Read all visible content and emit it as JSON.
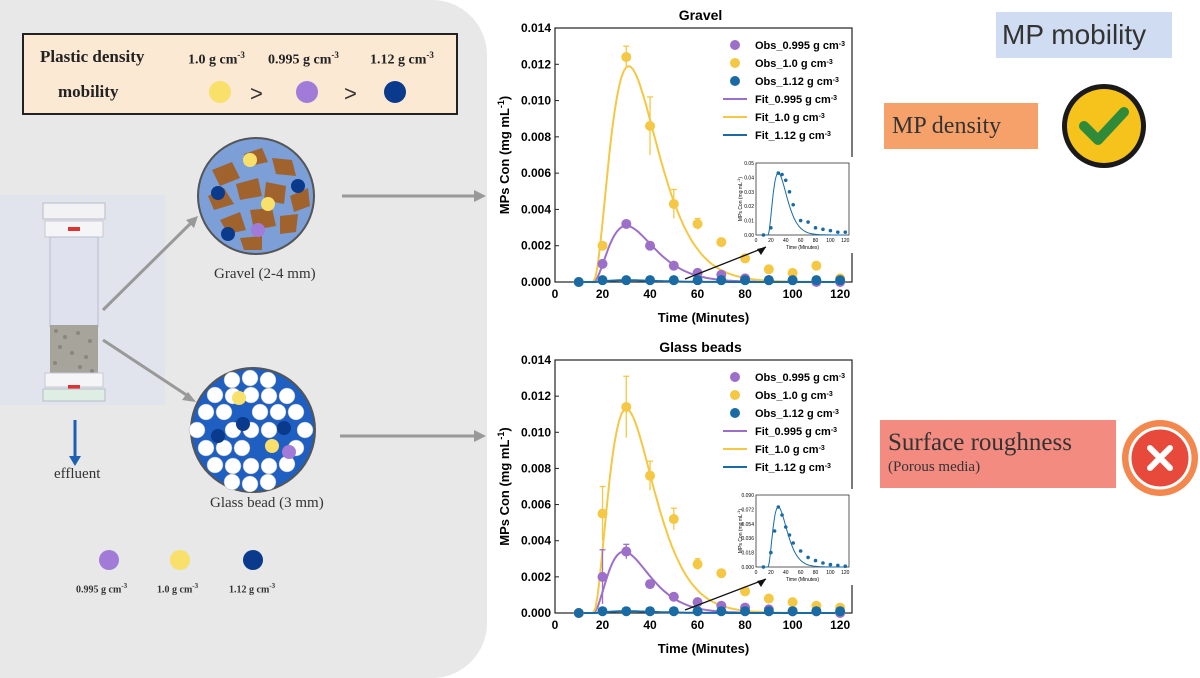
{
  "legend_box": {
    "title": "Plastic density",
    "mobility": "mobility",
    "densities": [
      "1.0 g cm",
      "0.995 g cm",
      "1.12 g cm"
    ],
    "unit_exp": "-3",
    "gt": ">"
  },
  "schematic": {
    "gravel_label": "Gravel (2-4 mm)",
    "glass_label": "Glass bead (3 mm)",
    "effluent": "effluent",
    "bottom_legend": [
      "0.995 g cm",
      "1.0 g cm",
      "1.12 g cm"
    ]
  },
  "tags": {
    "mp_mobility": "MP mobility",
    "mp_density": "MP density",
    "surface": "Surface roughness",
    "porous": "(Porous media)"
  },
  "colors": {
    "purple": "#9c6fc9",
    "yellow": "#f4c845",
    "blue": "#1a6aa4",
    "navy": "#0a3a8c",
    "dot_purple": "#a27ad8",
    "dot_yellow": "#f8e06a"
  },
  "chart_data": [
    {
      "type": "line",
      "title": "Gravel",
      "xlabel": "Time (Minutes)",
      "ylabel": "MPs Con (mg mL",
      "ylabel_exp": "-1",
      "ylabel_close": ")",
      "xlim": [
        0,
        125
      ],
      "ylim": [
        0,
        0.014
      ],
      "xticks": [
        "0",
        "20",
        "40",
        "60",
        "80",
        "100",
        "120"
      ],
      "yticks": [
        "0.000",
        "0.002",
        "0.004",
        "0.006",
        "0.008",
        "0.010",
        "0.012",
        "0.014"
      ],
      "legend": [
        "Obs_0.995 g cm",
        "Obs_1.0 g cm",
        "Obs_1.12 g cm",
        "Fit_0.995 g cm",
        "Fit_1.0 g cm",
        "Fit_1.12 g cm"
      ],
      "legend_exp": "-3",
      "series": [
        {
          "name": "Obs_0.995",
          "x": [
            10,
            20,
            30,
            40,
            50,
            60,
            70,
            80,
            90,
            100,
            110,
            120
          ],
          "values": [
            0.0,
            0.001,
            0.0032,
            0.002,
            0.0009,
            0.0005,
            0.0004,
            0.0002,
            0.0001,
            0.0001,
            0.0,
            0.0
          ]
        },
        {
          "name": "Obs_1.0",
          "x": [
            10,
            20,
            30,
            40,
            50,
            60,
            70,
            80,
            90,
            100,
            110,
            120
          ],
          "values": [
            0.0,
            0.002,
            0.0124,
            0.0086,
            0.0043,
            0.0032,
            0.0022,
            0.0013,
            0.0007,
            0.0005,
            0.0009,
            0.0002
          ],
          "err": [
            0,
            0,
            0.0006,
            0.0016,
            0.0008,
            0.0003,
            0.0002,
            0.0002,
            0,
            0,
            0,
            0
          ]
        },
        {
          "name": "Obs_1.12",
          "x": [
            10,
            20,
            30,
            40,
            50,
            60,
            70,
            80,
            90,
            100,
            110,
            120
          ],
          "values": [
            0,
            0.0001,
            0.0001,
            0.0001,
            0.0001,
            0.0001,
            0.0001,
            0.0001,
            0.0001,
            0.0001,
            0.0001,
            0.0001
          ]
        },
        {
          "name": "Fit_0.995",
          "peak": 0.0031,
          "tpeak": 30
        },
        {
          "name": "Fit_1.0",
          "peak": 0.0119,
          "tpeak": 31
        },
        {
          "name": "Fit_1.12",
          "peak": 0.0001,
          "tpeak": 30
        }
      ],
      "inset": {
        "ylabel": "MPs Con (mg mL",
        "xlabel": "Time (Minutes)",
        "yticks": [
          "0.00",
          "0.01",
          "0.02",
          "0.03",
          "0.04",
          "0.05"
        ],
        "xticks": [
          "0",
          "20",
          "40",
          "60",
          "80",
          "100",
          "120"
        ],
        "ylim": [
          0,
          0.05
        ],
        "x": [
          10,
          20,
          30,
          35,
          40,
          45,
          50,
          60,
          70,
          80,
          90,
          100,
          110,
          120
        ],
        "values": [
          0,
          0.005,
          0.043,
          0.042,
          0.038,
          0.03,
          0.021,
          0.01,
          0.009,
          0.005,
          0.004,
          0.003,
          0.002,
          0.002
        ]
      }
    },
    {
      "type": "line",
      "title": "Glass beads",
      "xlabel": "Time (Minutes)",
      "ylabel": "MPs Con (mg mL",
      "ylabel_exp": "-1",
      "ylabel_close": ")",
      "xlim": [
        0,
        125
      ],
      "ylim": [
        0,
        0.014
      ],
      "xticks": [
        "0",
        "20",
        "40",
        "60",
        "80",
        "100",
        "120"
      ],
      "yticks": [
        "0.000",
        "0.002",
        "0.004",
        "0.006",
        "0.008",
        "0.010",
        "0.012",
        "0.014"
      ],
      "legend": [
        "Obs_0.995 g cm",
        "Obs_1.0 g cm",
        "Obs_1.12 g cm",
        "Fit_0.995 g cm",
        "Fit_1.0 g cm",
        "Fit_1.12 g cm"
      ],
      "legend_exp": "-3",
      "series": [
        {
          "name": "Obs_0.995",
          "x": [
            10,
            20,
            30,
            40,
            50,
            60,
            70,
            80,
            90,
            100,
            110,
            120
          ],
          "values": [
            0.0,
            0.002,
            0.0034,
            0.0016,
            0.0009,
            0.0006,
            0.0004,
            0.0003,
            0.0002,
            0.0001,
            0.0001,
            0.0
          ],
          "err": [
            0,
            0.0015,
            0.0004,
            0.0002,
            0,
            0,
            0,
            0,
            0,
            0,
            0,
            0
          ]
        },
        {
          "name": "Obs_1.0",
          "x": [
            10,
            20,
            30,
            40,
            50,
            60,
            70,
            80,
            90,
            100,
            110,
            120
          ],
          "values": [
            0.0,
            0.0055,
            0.0114,
            0.0076,
            0.0052,
            0.0027,
            0.0022,
            0.0012,
            0.0008,
            0.0006,
            0.0004,
            0.0003
          ],
          "err": [
            0,
            0.0015,
            0.0017,
            0.0008,
            0.0006,
            0.0003,
            0.0002,
            0.0001,
            0,
            0,
            0,
            0
          ]
        },
        {
          "name": "Obs_1.12",
          "x": [
            10,
            20,
            30,
            40,
            50,
            60,
            70,
            80,
            90,
            100,
            110,
            120
          ],
          "values": [
            0,
            0.0001,
            0.0001,
            0.0001,
            0.0001,
            0.0001,
            0.0001,
            0.0001,
            0.0001,
            0.0001,
            0.0001,
            0.0001
          ]
        },
        {
          "name": "Fit_0.995",
          "peak": 0.0034,
          "tpeak": 29
        },
        {
          "name": "Fit_1.0",
          "peak": 0.0113,
          "tpeak": 30
        },
        {
          "name": "Fit_1.12",
          "peak": 0.0001,
          "tpeak": 30
        }
      ],
      "inset": {
        "ylabel": "MPs Con (mg mL",
        "xlabel": "Time (Minutes)",
        "yticks": [
          "0.000",
          "0.018",
          "0.036",
          "0.054",
          "0.072",
          "0.090"
        ],
        "xticks": [
          "0",
          "20",
          "40",
          "60",
          "80",
          "100",
          "120"
        ],
        "ylim": [
          0,
          0.09
        ],
        "x": [
          10,
          20,
          25,
          30,
          35,
          40,
          45,
          50,
          60,
          70,
          80,
          90,
          100,
          110,
          120
        ],
        "values": [
          0,
          0.018,
          0.045,
          0.075,
          0.065,
          0.05,
          0.04,
          0.03,
          0.02,
          0.012,
          0.008,
          0.005,
          0.003,
          0.002,
          0.001
        ]
      }
    }
  ]
}
